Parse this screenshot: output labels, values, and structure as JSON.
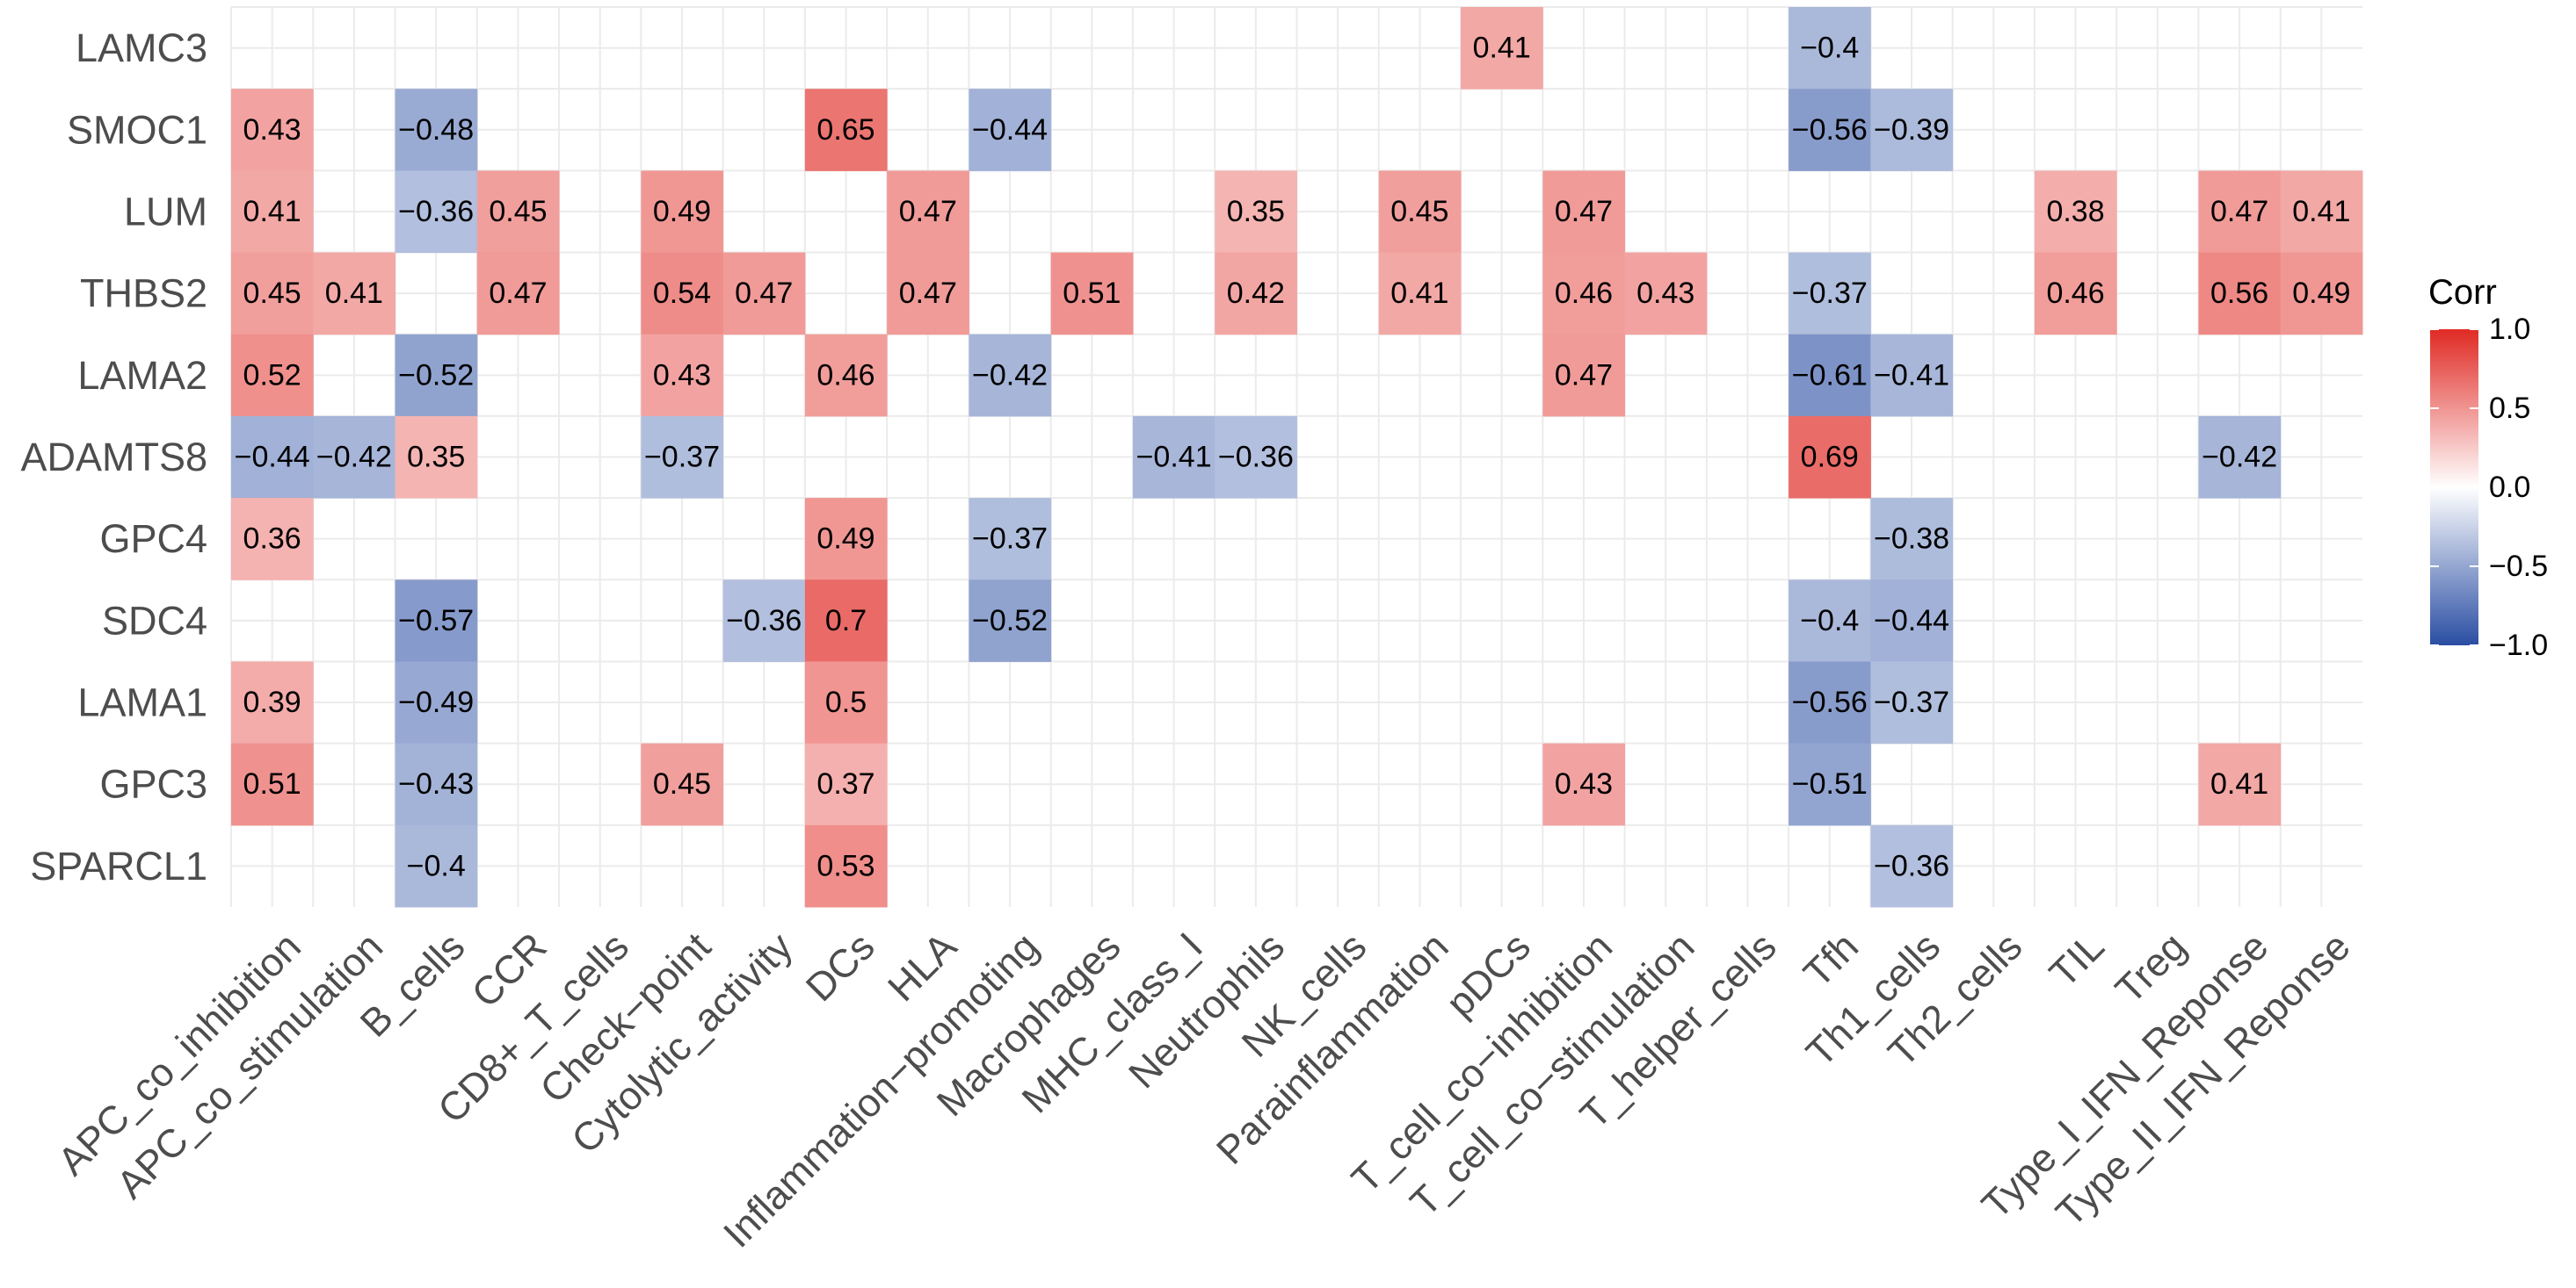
{
  "chart_data": {
    "type": "heatmap",
    "legend_title": "Corr",
    "legend_ticks": [
      "1.0",
      "0.5",
      "0.0",
      "-0.5",
      "-1.0"
    ],
    "legend_tick_values": [
      1.0,
      0.5,
      0.0,
      -0.5,
      -1.0
    ],
    "colors": {
      "low": "#2a4ea3",
      "mid": "#ffffff",
      "high": "#e02a24"
    },
    "value_range": [
      -1,
      1
    ],
    "rows": [
      "LAMC3",
      "SMOC1",
      "LUM",
      "THBS2",
      "LAMA2",
      "ADAMTS8",
      "GPC4",
      "SDC4",
      "LAMA1",
      "GPC3",
      "SPARCL1"
    ],
    "columns": [
      "APC_co_inhibition",
      "APC_co_stimulation",
      "B_cells",
      "CCR",
      "CD8+_T_cells",
      "Check-point",
      "Cytolytic_activity",
      "DCs",
      "HLA",
      "Inflammation-promoting",
      "Macrophages",
      "MHC_class_I",
      "Neutrophils",
      "NK_cells",
      "Parainflammation",
      "pDCs",
      "T_cell_co-inhibition",
      "T_cell_co-stimulation",
      "T_helper_cells",
      "Tfh",
      "Th1_cells",
      "Th2_cells",
      "TIL",
      "Treg",
      "Type_I_IFN_Reponse",
      "Type_II_IFN_Reponse"
    ],
    "cells": [
      {
        "row": "LAMC3",
        "col": "pDCs",
        "value": 0.41,
        "label": "0.41"
      },
      {
        "row": "LAMC3",
        "col": "Tfh",
        "value": -0.4,
        "label": "-0.4"
      },
      {
        "row": "SMOC1",
        "col": "APC_co_inhibition",
        "value": 0.43,
        "label": "0.43"
      },
      {
        "row": "SMOC1",
        "col": "B_cells",
        "value": -0.48,
        "label": "-0.48"
      },
      {
        "row": "SMOC1",
        "col": "DCs",
        "value": 0.65,
        "label": "0.65"
      },
      {
        "row": "SMOC1",
        "col": "Inflammation-promoting",
        "value": -0.44,
        "label": "-0.44"
      },
      {
        "row": "SMOC1",
        "col": "Tfh",
        "value": -0.56,
        "label": "-0.56"
      },
      {
        "row": "SMOC1",
        "col": "Th1_cells",
        "value": -0.39,
        "label": "-0.39"
      },
      {
        "row": "LUM",
        "col": "APC_co_inhibition",
        "value": 0.41,
        "label": "0.41"
      },
      {
        "row": "LUM",
        "col": "B_cells",
        "value": -0.36,
        "label": "-0.36"
      },
      {
        "row": "LUM",
        "col": "CCR",
        "value": 0.45,
        "label": "0.45"
      },
      {
        "row": "LUM",
        "col": "Check-point",
        "value": 0.49,
        "label": "0.49"
      },
      {
        "row": "LUM",
        "col": "HLA",
        "value": 0.47,
        "label": "0.47"
      },
      {
        "row": "LUM",
        "col": "Neutrophils",
        "value": 0.35,
        "label": "0.35"
      },
      {
        "row": "LUM",
        "col": "Parainflammation",
        "value": 0.45,
        "label": "0.45"
      },
      {
        "row": "LUM",
        "col": "T_cell_co-inhibition",
        "value": 0.47,
        "label": "0.47"
      },
      {
        "row": "LUM",
        "col": "TIL",
        "value": 0.38,
        "label": "0.38"
      },
      {
        "row": "LUM",
        "col": "Type_I_IFN_Reponse",
        "value": 0.47,
        "label": "0.47"
      },
      {
        "row": "LUM",
        "col": "Type_II_IFN_Reponse",
        "value": 0.41,
        "label": "0.41"
      },
      {
        "row": "THBS2",
        "col": "APC_co_inhibition",
        "value": 0.45,
        "label": "0.45"
      },
      {
        "row": "THBS2",
        "col": "APC_co_stimulation",
        "value": 0.41,
        "label": "0.41"
      },
      {
        "row": "THBS2",
        "col": "CCR",
        "value": 0.47,
        "label": "0.47"
      },
      {
        "row": "THBS2",
        "col": "Check-point",
        "value": 0.54,
        "label": "0.54"
      },
      {
        "row": "THBS2",
        "col": "Cytolytic_activity",
        "value": 0.47,
        "label": "0.47"
      },
      {
        "row": "THBS2",
        "col": "HLA",
        "value": 0.47,
        "label": "0.47"
      },
      {
        "row": "THBS2",
        "col": "Macrophages",
        "value": 0.51,
        "label": "0.51"
      },
      {
        "row": "THBS2",
        "col": "Neutrophils",
        "value": 0.42,
        "label": "0.42"
      },
      {
        "row": "THBS2",
        "col": "Parainflammation",
        "value": 0.41,
        "label": "0.41"
      },
      {
        "row": "THBS2",
        "col": "T_cell_co-inhibition",
        "value": 0.46,
        "label": "0.46"
      },
      {
        "row": "THBS2",
        "col": "T_cell_co-stimulation",
        "value": 0.43,
        "label": "0.43"
      },
      {
        "row": "THBS2",
        "col": "Tfh",
        "value": -0.37,
        "label": "-0.37"
      },
      {
        "row": "THBS2",
        "col": "TIL",
        "value": 0.46,
        "label": "0.46"
      },
      {
        "row": "THBS2",
        "col": "Type_I_IFN_Reponse",
        "value": 0.56,
        "label": "0.56"
      },
      {
        "row": "THBS2",
        "col": "Type_II_IFN_Reponse",
        "value": 0.49,
        "label": "0.49"
      },
      {
        "row": "LAMA2",
        "col": "APC_co_inhibition",
        "value": 0.52,
        "label": "0.52"
      },
      {
        "row": "LAMA2",
        "col": "B_cells",
        "value": -0.52,
        "label": "-0.52"
      },
      {
        "row": "LAMA2",
        "col": "Check-point",
        "value": 0.43,
        "label": "0.43"
      },
      {
        "row": "LAMA2",
        "col": "DCs",
        "value": 0.46,
        "label": "0.46"
      },
      {
        "row": "LAMA2",
        "col": "Inflammation-promoting",
        "value": -0.42,
        "label": "-0.42"
      },
      {
        "row": "LAMA2",
        "col": "T_cell_co-inhibition",
        "value": 0.47,
        "label": "0.47"
      },
      {
        "row": "LAMA2",
        "col": "Tfh",
        "value": -0.61,
        "label": "-0.61"
      },
      {
        "row": "LAMA2",
        "col": "Th1_cells",
        "value": -0.41,
        "label": "-0.41"
      },
      {
        "row": "ADAMTS8",
        "col": "APC_co_inhibition",
        "value": -0.44,
        "label": "-0.44"
      },
      {
        "row": "ADAMTS8",
        "col": "APC_co_stimulation",
        "value": -0.42,
        "label": "-0.42"
      },
      {
        "row": "ADAMTS8",
        "col": "B_cells",
        "value": 0.35,
        "label": "0.35"
      },
      {
        "row": "ADAMTS8",
        "col": "Check-point",
        "value": -0.37,
        "label": "-0.37"
      },
      {
        "row": "ADAMTS8",
        "col": "MHC_class_I",
        "value": -0.41,
        "label": "-0.41"
      },
      {
        "row": "ADAMTS8",
        "col": "Neutrophils",
        "value": -0.36,
        "label": "-0.36"
      },
      {
        "row": "ADAMTS8",
        "col": "Tfh",
        "value": 0.69,
        "label": "0.69"
      },
      {
        "row": "ADAMTS8",
        "col": "Type_I_IFN_Reponse",
        "value": -0.42,
        "label": "-0.42"
      },
      {
        "row": "GPC4",
        "col": "APC_co_inhibition",
        "value": 0.36,
        "label": "0.36"
      },
      {
        "row": "GPC4",
        "col": "DCs",
        "value": 0.49,
        "label": "0.49"
      },
      {
        "row": "GPC4",
        "col": "Inflammation-promoting",
        "value": -0.37,
        "label": "-0.37"
      },
      {
        "row": "GPC4",
        "col": "Th1_cells",
        "value": -0.38,
        "label": "-0.38"
      },
      {
        "row": "SDC4",
        "col": "B_cells",
        "value": -0.57,
        "label": "-0.57"
      },
      {
        "row": "SDC4",
        "col": "Cytolytic_activity",
        "value": -0.36,
        "label": "-0.36"
      },
      {
        "row": "SDC4",
        "col": "DCs",
        "value": 0.7,
        "label": "0.7"
      },
      {
        "row": "SDC4",
        "col": "Inflammation-promoting",
        "value": -0.52,
        "label": "-0.52"
      },
      {
        "row": "SDC4",
        "col": "Tfh",
        "value": -0.4,
        "label": "-0.4"
      },
      {
        "row": "SDC4",
        "col": "Th1_cells",
        "value": -0.44,
        "label": "-0.44"
      },
      {
        "row": "LAMA1",
        "col": "APC_co_inhibition",
        "value": 0.39,
        "label": "0.39"
      },
      {
        "row": "LAMA1",
        "col": "B_cells",
        "value": -0.49,
        "label": "-0.49"
      },
      {
        "row": "LAMA1",
        "col": "DCs",
        "value": 0.5,
        "label": "0.5"
      },
      {
        "row": "LAMA1",
        "col": "Tfh",
        "value": -0.56,
        "label": "-0.56"
      },
      {
        "row": "LAMA1",
        "col": "Th1_cells",
        "value": -0.37,
        "label": "-0.37"
      },
      {
        "row": "GPC3",
        "col": "APC_co_inhibition",
        "value": 0.51,
        "label": "0.51"
      },
      {
        "row": "GPC3",
        "col": "B_cells",
        "value": -0.43,
        "label": "-0.43"
      },
      {
        "row": "GPC3",
        "col": "Check-point",
        "value": 0.45,
        "label": "0.45"
      },
      {
        "row": "GPC3",
        "col": "DCs",
        "value": 0.37,
        "label": "0.37"
      },
      {
        "row": "GPC3",
        "col": "T_cell_co-inhibition",
        "value": 0.43,
        "label": "0.43"
      },
      {
        "row": "GPC3",
        "col": "Tfh",
        "value": -0.51,
        "label": "-0.51"
      },
      {
        "row": "GPC3",
        "col": "Type_I_IFN_Reponse",
        "value": 0.41,
        "label": "0.41"
      },
      {
        "row": "SPARCL1",
        "col": "B_cells",
        "value": -0.4,
        "label": "-0.4"
      },
      {
        "row": "SPARCL1",
        "col": "DCs",
        "value": 0.53,
        "label": "0.53"
      },
      {
        "row": "SPARCL1",
        "col": "Th1_cells",
        "value": -0.36,
        "label": "-0.36"
      }
    ]
  }
}
